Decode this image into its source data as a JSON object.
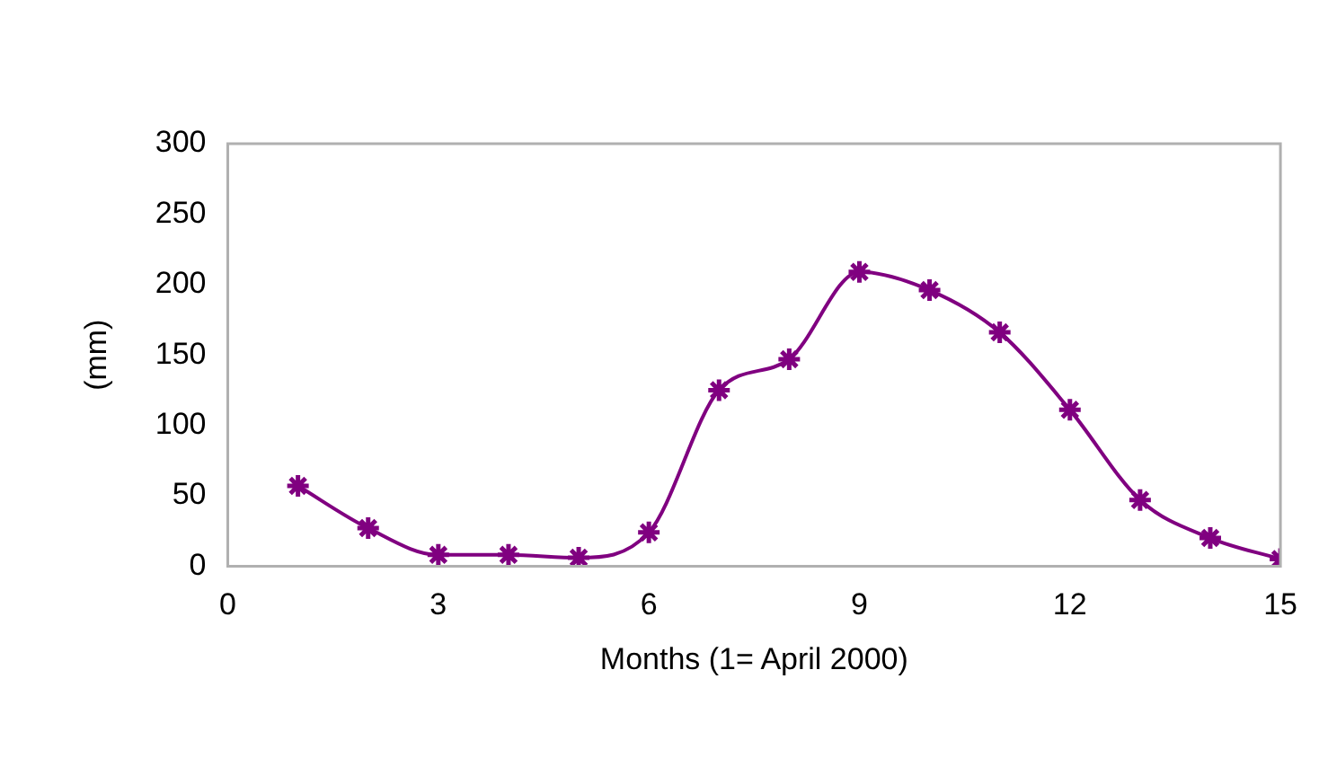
{
  "chart_data": {
    "type": "line",
    "xlabel": "Months (1= April 2000)",
    "ylabel": "(mm)",
    "x": [
      1,
      2,
      3,
      4,
      5,
      6,
      7,
      8,
      9,
      10,
      11,
      12,
      13,
      14,
      15
    ],
    "series": [
      {
        "color": "#800080",
        "values": [
          57,
          27,
          8,
          8,
          6,
          24,
          125,
          147,
          209,
          196,
          166,
          111,
          47,
          20,
          5
        ]
      }
    ],
    "xlim": [
      0,
      15
    ],
    "xticks": [
      0,
      3,
      6,
      9,
      12,
      15
    ],
    "ylim": [
      0,
      300
    ],
    "yticks": [
      0,
      50,
      100,
      150,
      200,
      250,
      300
    ],
    "grid": false,
    "legend": false,
    "marker": "cross",
    "line_style": "solid"
  }
}
